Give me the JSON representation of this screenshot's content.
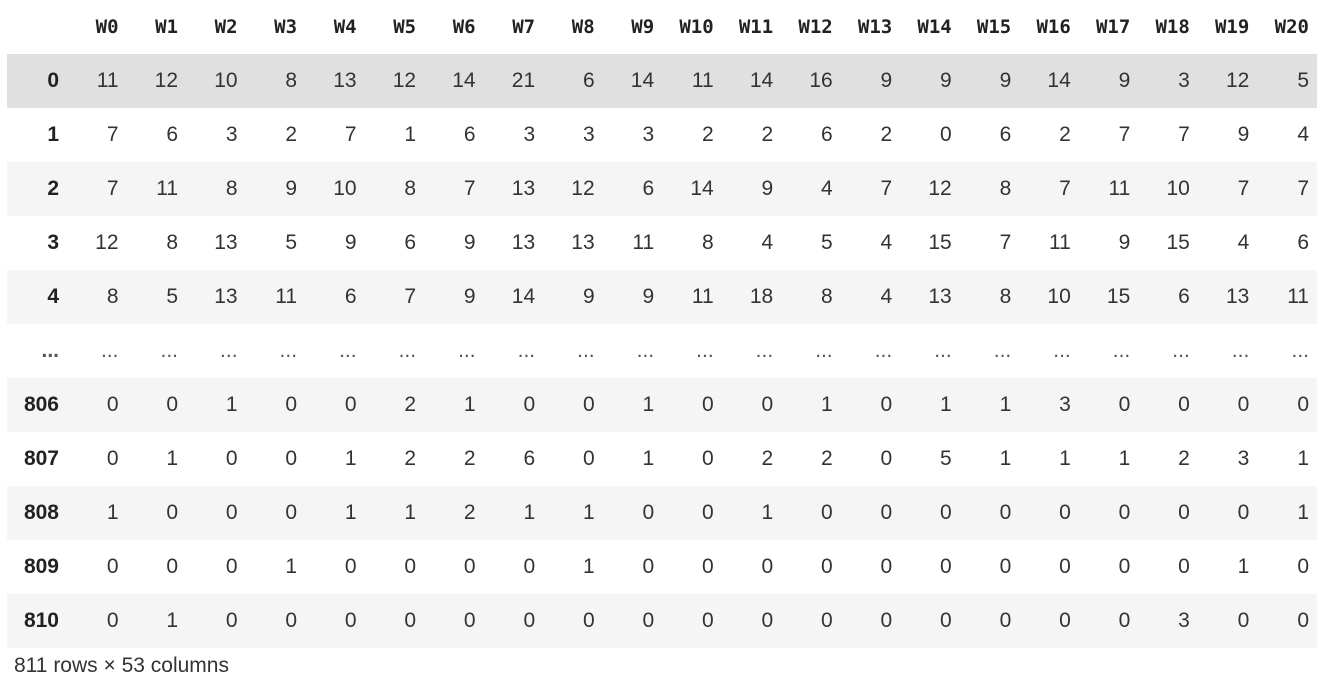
{
  "dataframe": {
    "index_header": "",
    "columns": [
      "W0",
      "W1",
      "W2",
      "W3",
      "W4",
      "W5",
      "W6",
      "W7",
      "W8",
      "W9",
      "W10",
      "W11",
      "W12",
      "W13",
      "W14",
      "W15",
      "W16",
      "W17",
      "W18",
      "W19",
      "W20"
    ],
    "rows": [
      {
        "index": "0",
        "style": "hover",
        "values": [
          "11",
          "12",
          "10",
          "8",
          "13",
          "12",
          "14",
          "21",
          "6",
          "14",
          "11",
          "14",
          "16",
          "9",
          "9",
          "9",
          "14",
          "9",
          "3",
          "12",
          "5"
        ]
      },
      {
        "index": "1",
        "style": "even",
        "values": [
          "7",
          "6",
          "3",
          "2",
          "7",
          "1",
          "6",
          "3",
          "3",
          "3",
          "2",
          "2",
          "6",
          "2",
          "0",
          "6",
          "2",
          "7",
          "7",
          "9",
          "4"
        ]
      },
      {
        "index": "2",
        "style": "odd",
        "values": [
          "7",
          "11",
          "8",
          "9",
          "10",
          "8",
          "7",
          "13",
          "12",
          "6",
          "14",
          "9",
          "4",
          "7",
          "12",
          "8",
          "7",
          "11",
          "10",
          "7",
          "7"
        ]
      },
      {
        "index": "3",
        "style": "even",
        "values": [
          "12",
          "8",
          "13",
          "5",
          "9",
          "6",
          "9",
          "13",
          "13",
          "11",
          "8",
          "4",
          "5",
          "4",
          "15",
          "7",
          "11",
          "9",
          "15",
          "4",
          "6"
        ]
      },
      {
        "index": "4",
        "style": "odd",
        "values": [
          "8",
          "5",
          "13",
          "11",
          "6",
          "7",
          "9",
          "14",
          "9",
          "9",
          "11",
          "18",
          "8",
          "4",
          "13",
          "8",
          "10",
          "15",
          "6",
          "13",
          "11"
        ]
      },
      {
        "index": "...",
        "style": "even ellipsis",
        "values": [
          "...",
          "...",
          "...",
          "...",
          "...",
          "...",
          "...",
          "...",
          "...",
          "...",
          "...",
          "...",
          "...",
          "...",
          "...",
          "...",
          "...",
          "...",
          "...",
          "...",
          "..."
        ]
      },
      {
        "index": "806",
        "style": "odd",
        "values": [
          "0",
          "0",
          "1",
          "0",
          "0",
          "2",
          "1",
          "0",
          "0",
          "1",
          "0",
          "0",
          "1",
          "0",
          "1",
          "1",
          "3",
          "0",
          "0",
          "0",
          "0"
        ]
      },
      {
        "index": "807",
        "style": "even",
        "values": [
          "0",
          "1",
          "0",
          "0",
          "1",
          "2",
          "2",
          "6",
          "0",
          "1",
          "0",
          "2",
          "2",
          "0",
          "5",
          "1",
          "1",
          "1",
          "2",
          "3",
          "1"
        ]
      },
      {
        "index": "808",
        "style": "odd",
        "values": [
          "1",
          "0",
          "0",
          "0",
          "1",
          "1",
          "2",
          "1",
          "1",
          "0",
          "0",
          "1",
          "0",
          "0",
          "0",
          "0",
          "0",
          "0",
          "0",
          "0",
          "1"
        ]
      },
      {
        "index": "809",
        "style": "even",
        "values": [
          "0",
          "0",
          "0",
          "1",
          "0",
          "0",
          "0",
          "0",
          "1",
          "0",
          "0",
          "0",
          "0",
          "0",
          "0",
          "0",
          "0",
          "0",
          "0",
          "1",
          "0"
        ]
      },
      {
        "index": "810",
        "style": "odd",
        "values": [
          "0",
          "1",
          "0",
          "0",
          "0",
          "0",
          "0",
          "0",
          "0",
          "0",
          "0",
          "0",
          "0",
          "0",
          "0",
          "0",
          "0",
          "0",
          "3",
          "0",
          "0"
        ]
      }
    ],
    "shape_text": "811 rows × 53 columns"
  }
}
